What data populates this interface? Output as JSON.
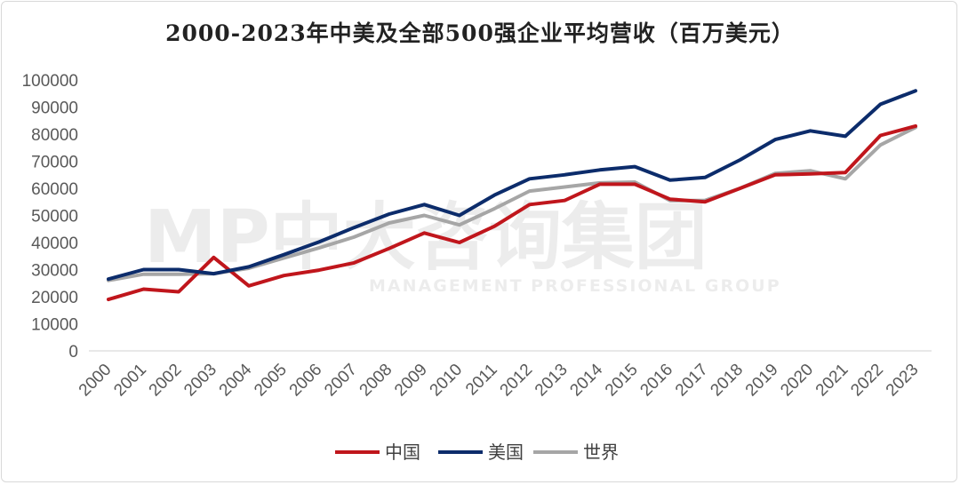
{
  "chart_data": {
    "type": "line",
    "title": "2000-2023年中美及全部500强企业平均营收（百万美元）",
    "watermark": {
      "brand": "MP中大咨询集团",
      "subtitle": "MANAGEMENT PROFESSIONAL GROUP"
    },
    "categories": [
      "2000",
      "2001",
      "2002",
      "2003",
      "2004",
      "2005",
      "2006",
      "2007",
      "2008",
      "2009",
      "2010",
      "2011",
      "2012",
      "2013",
      "2014",
      "2015",
      "2016",
      "2017",
      "2018",
      "2019",
      "2020",
      "2021",
      "2022",
      "2023"
    ],
    "ylim": [
      0,
      100000
    ],
    "yticks": [
      0,
      10000,
      20000,
      30000,
      40000,
      50000,
      60000,
      70000,
      80000,
      90000,
      100000
    ],
    "grid": false,
    "legend_position": "bottom",
    "series": [
      {
        "name": "中国",
        "color": "#c0161c",
        "values": [
          19000,
          22800,
          21800,
          34500,
          24000,
          27800,
          29800,
          32500,
          37800,
          43500,
          40000,
          46000,
          54000,
          55500,
          61500,
          61500,
          56000,
          55000,
          60000,
          65000,
          65300,
          65800,
          79500,
          83000
        ]
      },
      {
        "name": "美国",
        "color": "#0c2c6b",
        "values": [
          26500,
          30000,
          30000,
          28500,
          31000,
          35500,
          40200,
          45500,
          50500,
          54000,
          50000,
          57500,
          63500,
          65000,
          66800,
          68000,
          63000,
          64000,
          70500,
          78000,
          81200,
          79200,
          91000,
          96000
        ]
      },
      {
        "name": "世界",
        "color": "#a6a6a6",
        "values": [
          26000,
          28300,
          28300,
          28500,
          30500,
          34300,
          38000,
          42000,
          47200,
          50000,
          46500,
          52500,
          59000,
          60500,
          62000,
          62300,
          55500,
          55500,
          60000,
          65500,
          66500,
          63500,
          76000,
          82500
        ]
      }
    ]
  }
}
